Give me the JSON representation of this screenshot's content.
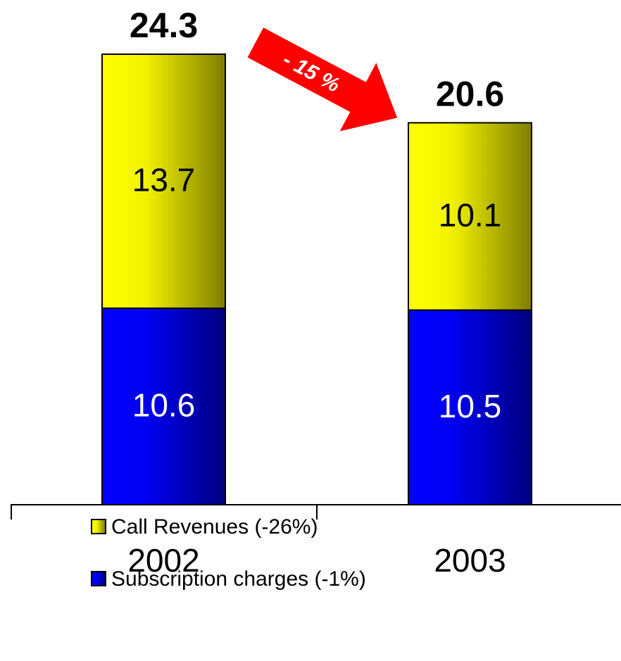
{
  "chart_data": {
    "type": "stacked-bar",
    "categories": [
      "2002",
      "2003"
    ],
    "series": [
      {
        "name": "Subscription charges (-1%)",
        "color": "#0000ff",
        "values": [
          10.6,
          10.5
        ]
      },
      {
        "name": "Call Revenues (-26%)",
        "color": "#ffff00",
        "values": [
          13.7,
          10.1
        ]
      }
    ],
    "totals": [
      24.3,
      20.6
    ],
    "annotation": "- 15 %"
  }
}
